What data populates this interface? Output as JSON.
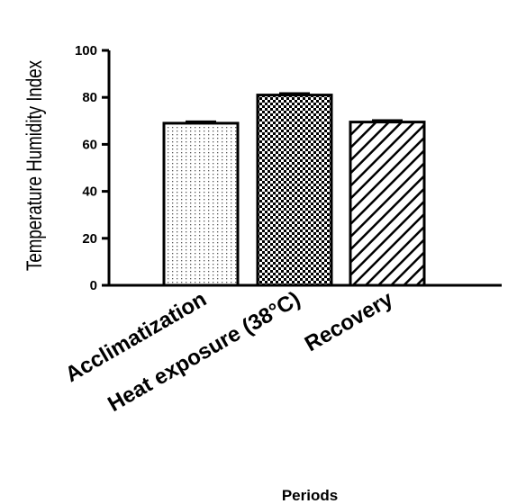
{
  "chart_data": {
    "type": "bar",
    "title": "",
    "xlabel": "Periods",
    "ylabel": "Temperature Humidity Index",
    "ylim": [
      0,
      100
    ],
    "yticks": [
      0,
      20,
      40,
      60,
      80,
      100
    ],
    "ytick_labels": [
      "0",
      "20",
      "40",
      "60",
      "80",
      "100"
    ],
    "categories": [
      "Acclimatization",
      "Heat exposure (38°C)",
      "Recovery"
    ],
    "values": [
      69,
      81,
      69.5
    ],
    "errors": [
      0.6,
      0.6,
      0.6
    ],
    "patterns": [
      "dots",
      "checker",
      "diagonal"
    ],
    "grid": false,
    "legend": "none"
  },
  "colors": {
    "bar_stroke": "#000000",
    "background": "#ffffff"
  }
}
